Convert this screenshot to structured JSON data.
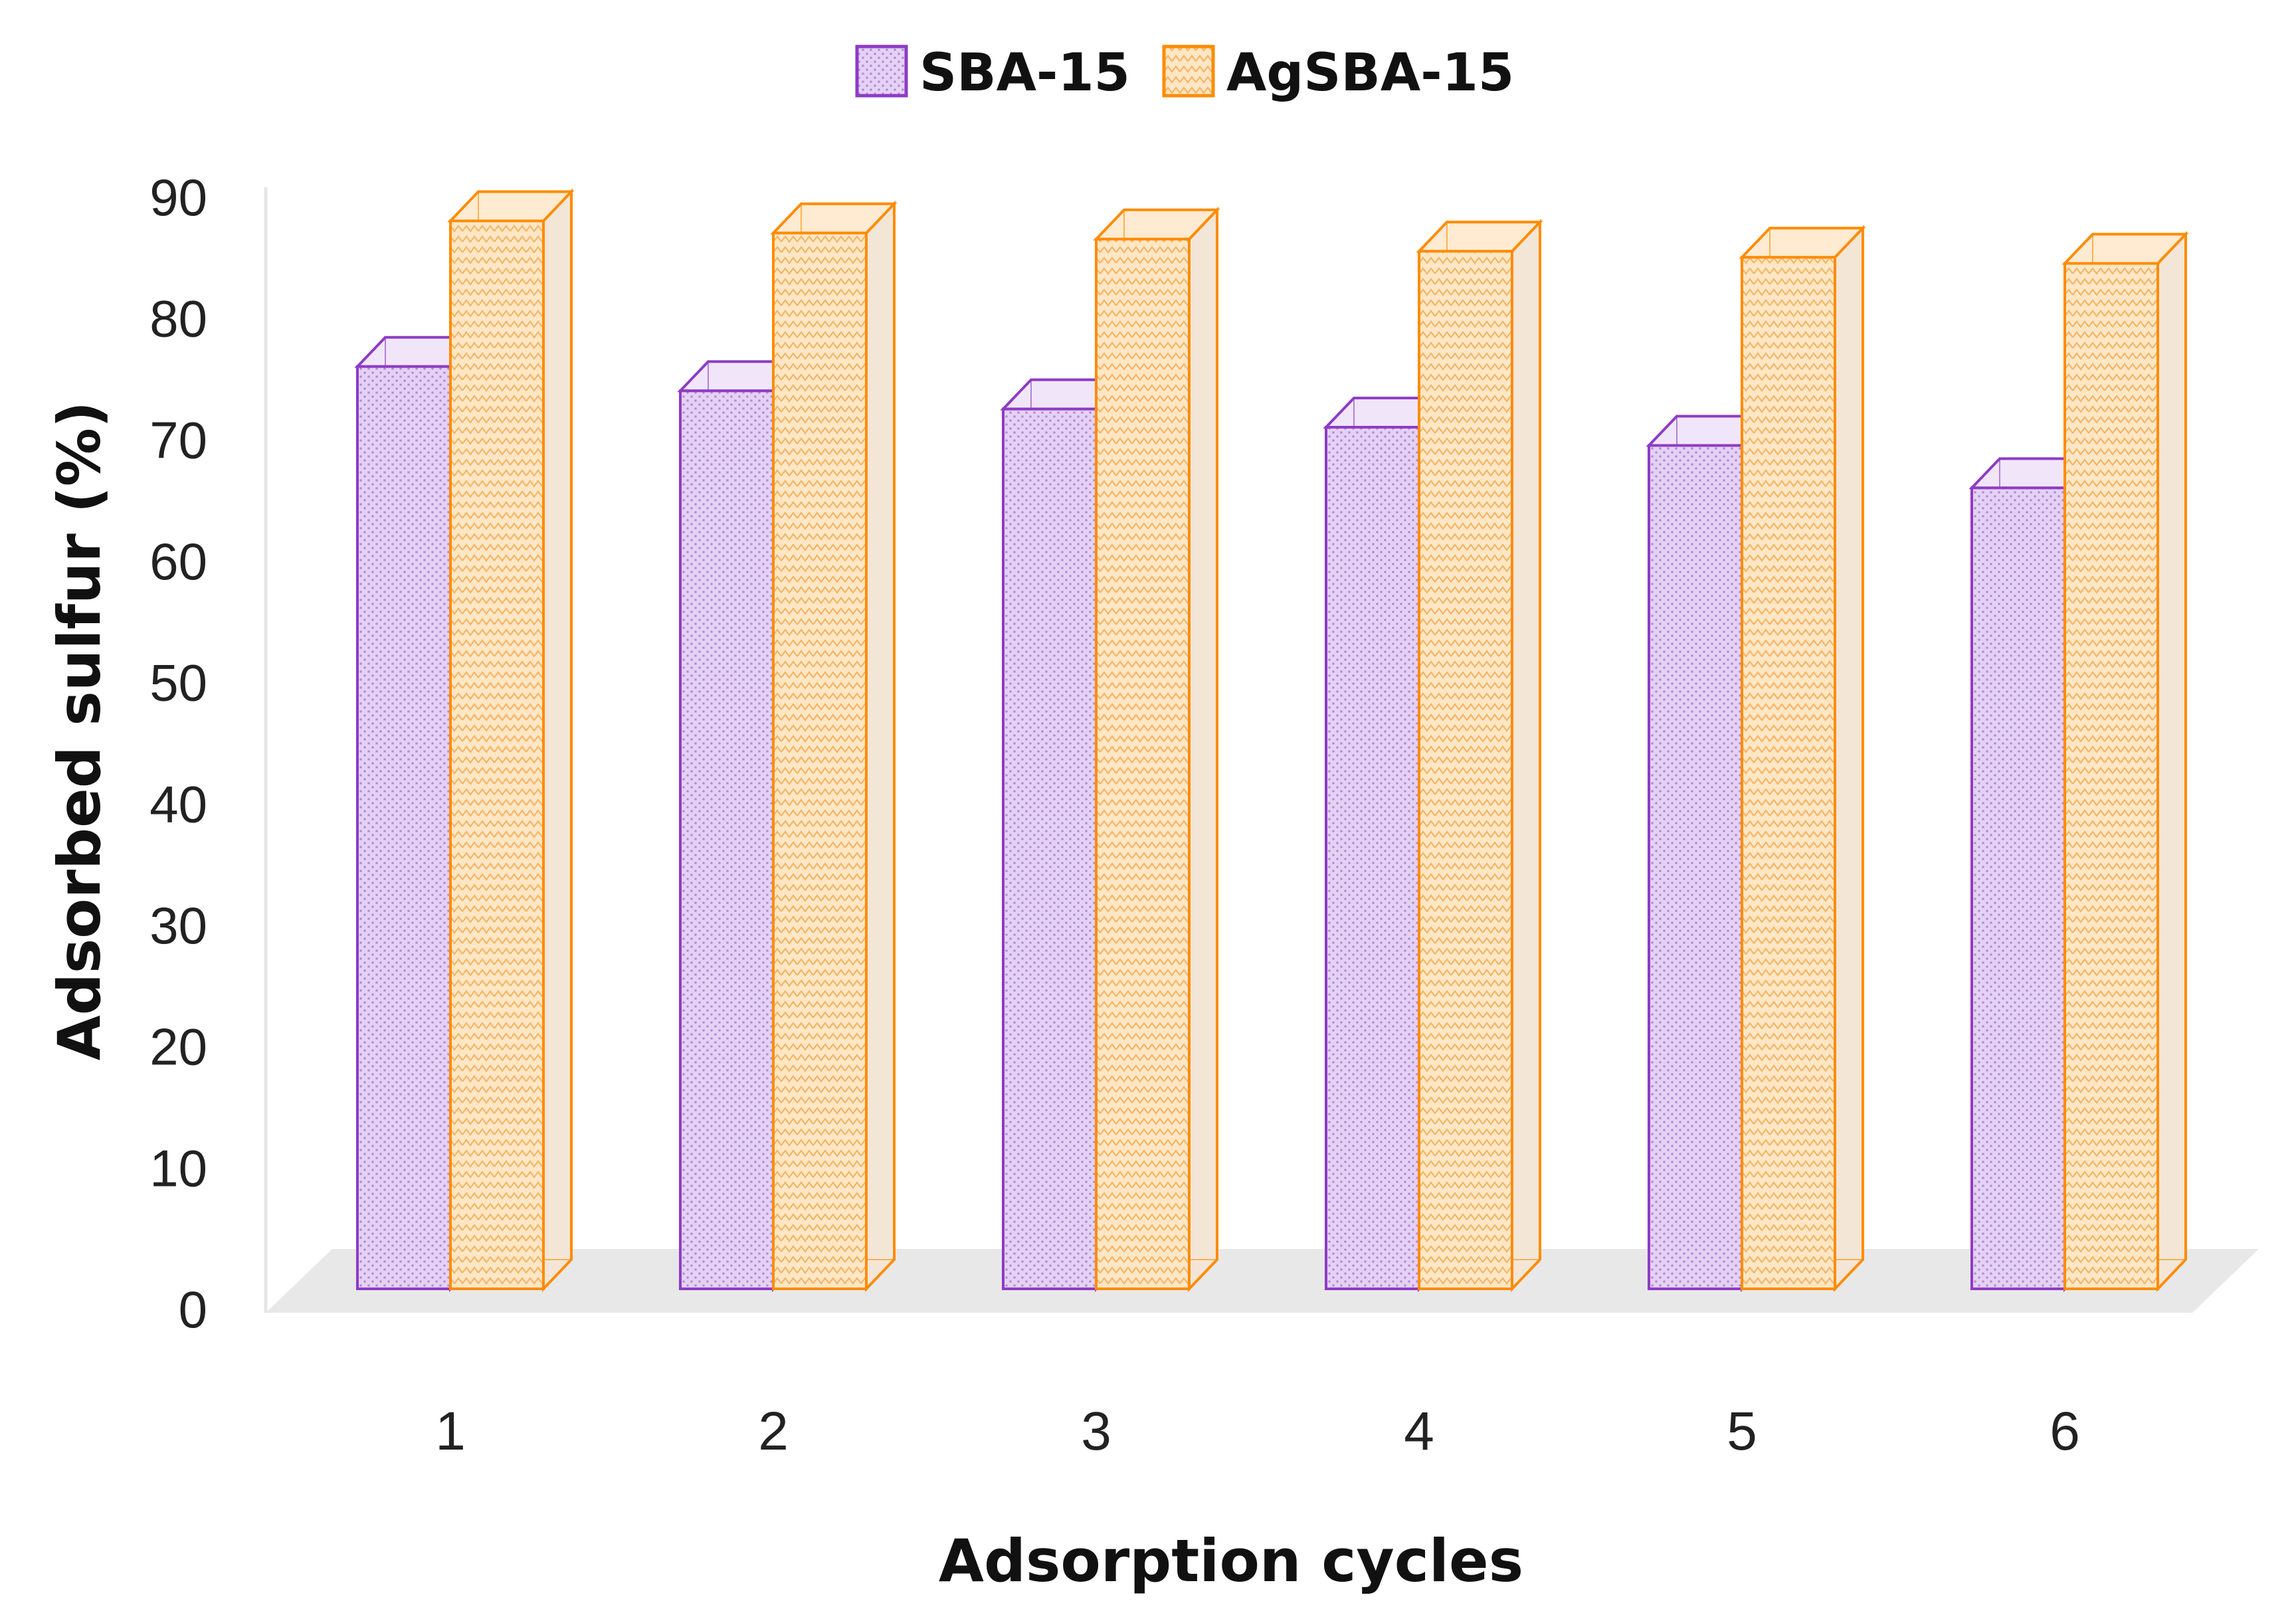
{
  "chart_data": {
    "type": "bar",
    "title": "",
    "xlabel": "Adsorption cycles",
    "ylabel": "Adsorbed sulfur (%)",
    "categories": [
      "1",
      "2",
      "3",
      "4",
      "5",
      "6"
    ],
    "ylim": [
      0,
      90
    ],
    "yticks": [
      0,
      10,
      20,
      30,
      40,
      50,
      60,
      70,
      80,
      90
    ],
    "grid": false,
    "legend_position": "top-center",
    "series": [
      {
        "name": "SBA-15",
        "color": "#8E3BC5",
        "fill": "#D9BEEF",
        "values": [
          76,
          74,
          72.5,
          71,
          69.5,
          66
        ]
      },
      {
        "name": "AgSBA-15",
        "color": "#FF8C00",
        "fill": "#FFD9A6",
        "values": [
          88,
          87,
          86.5,
          85.5,
          85,
          84.5
        ]
      }
    ]
  }
}
